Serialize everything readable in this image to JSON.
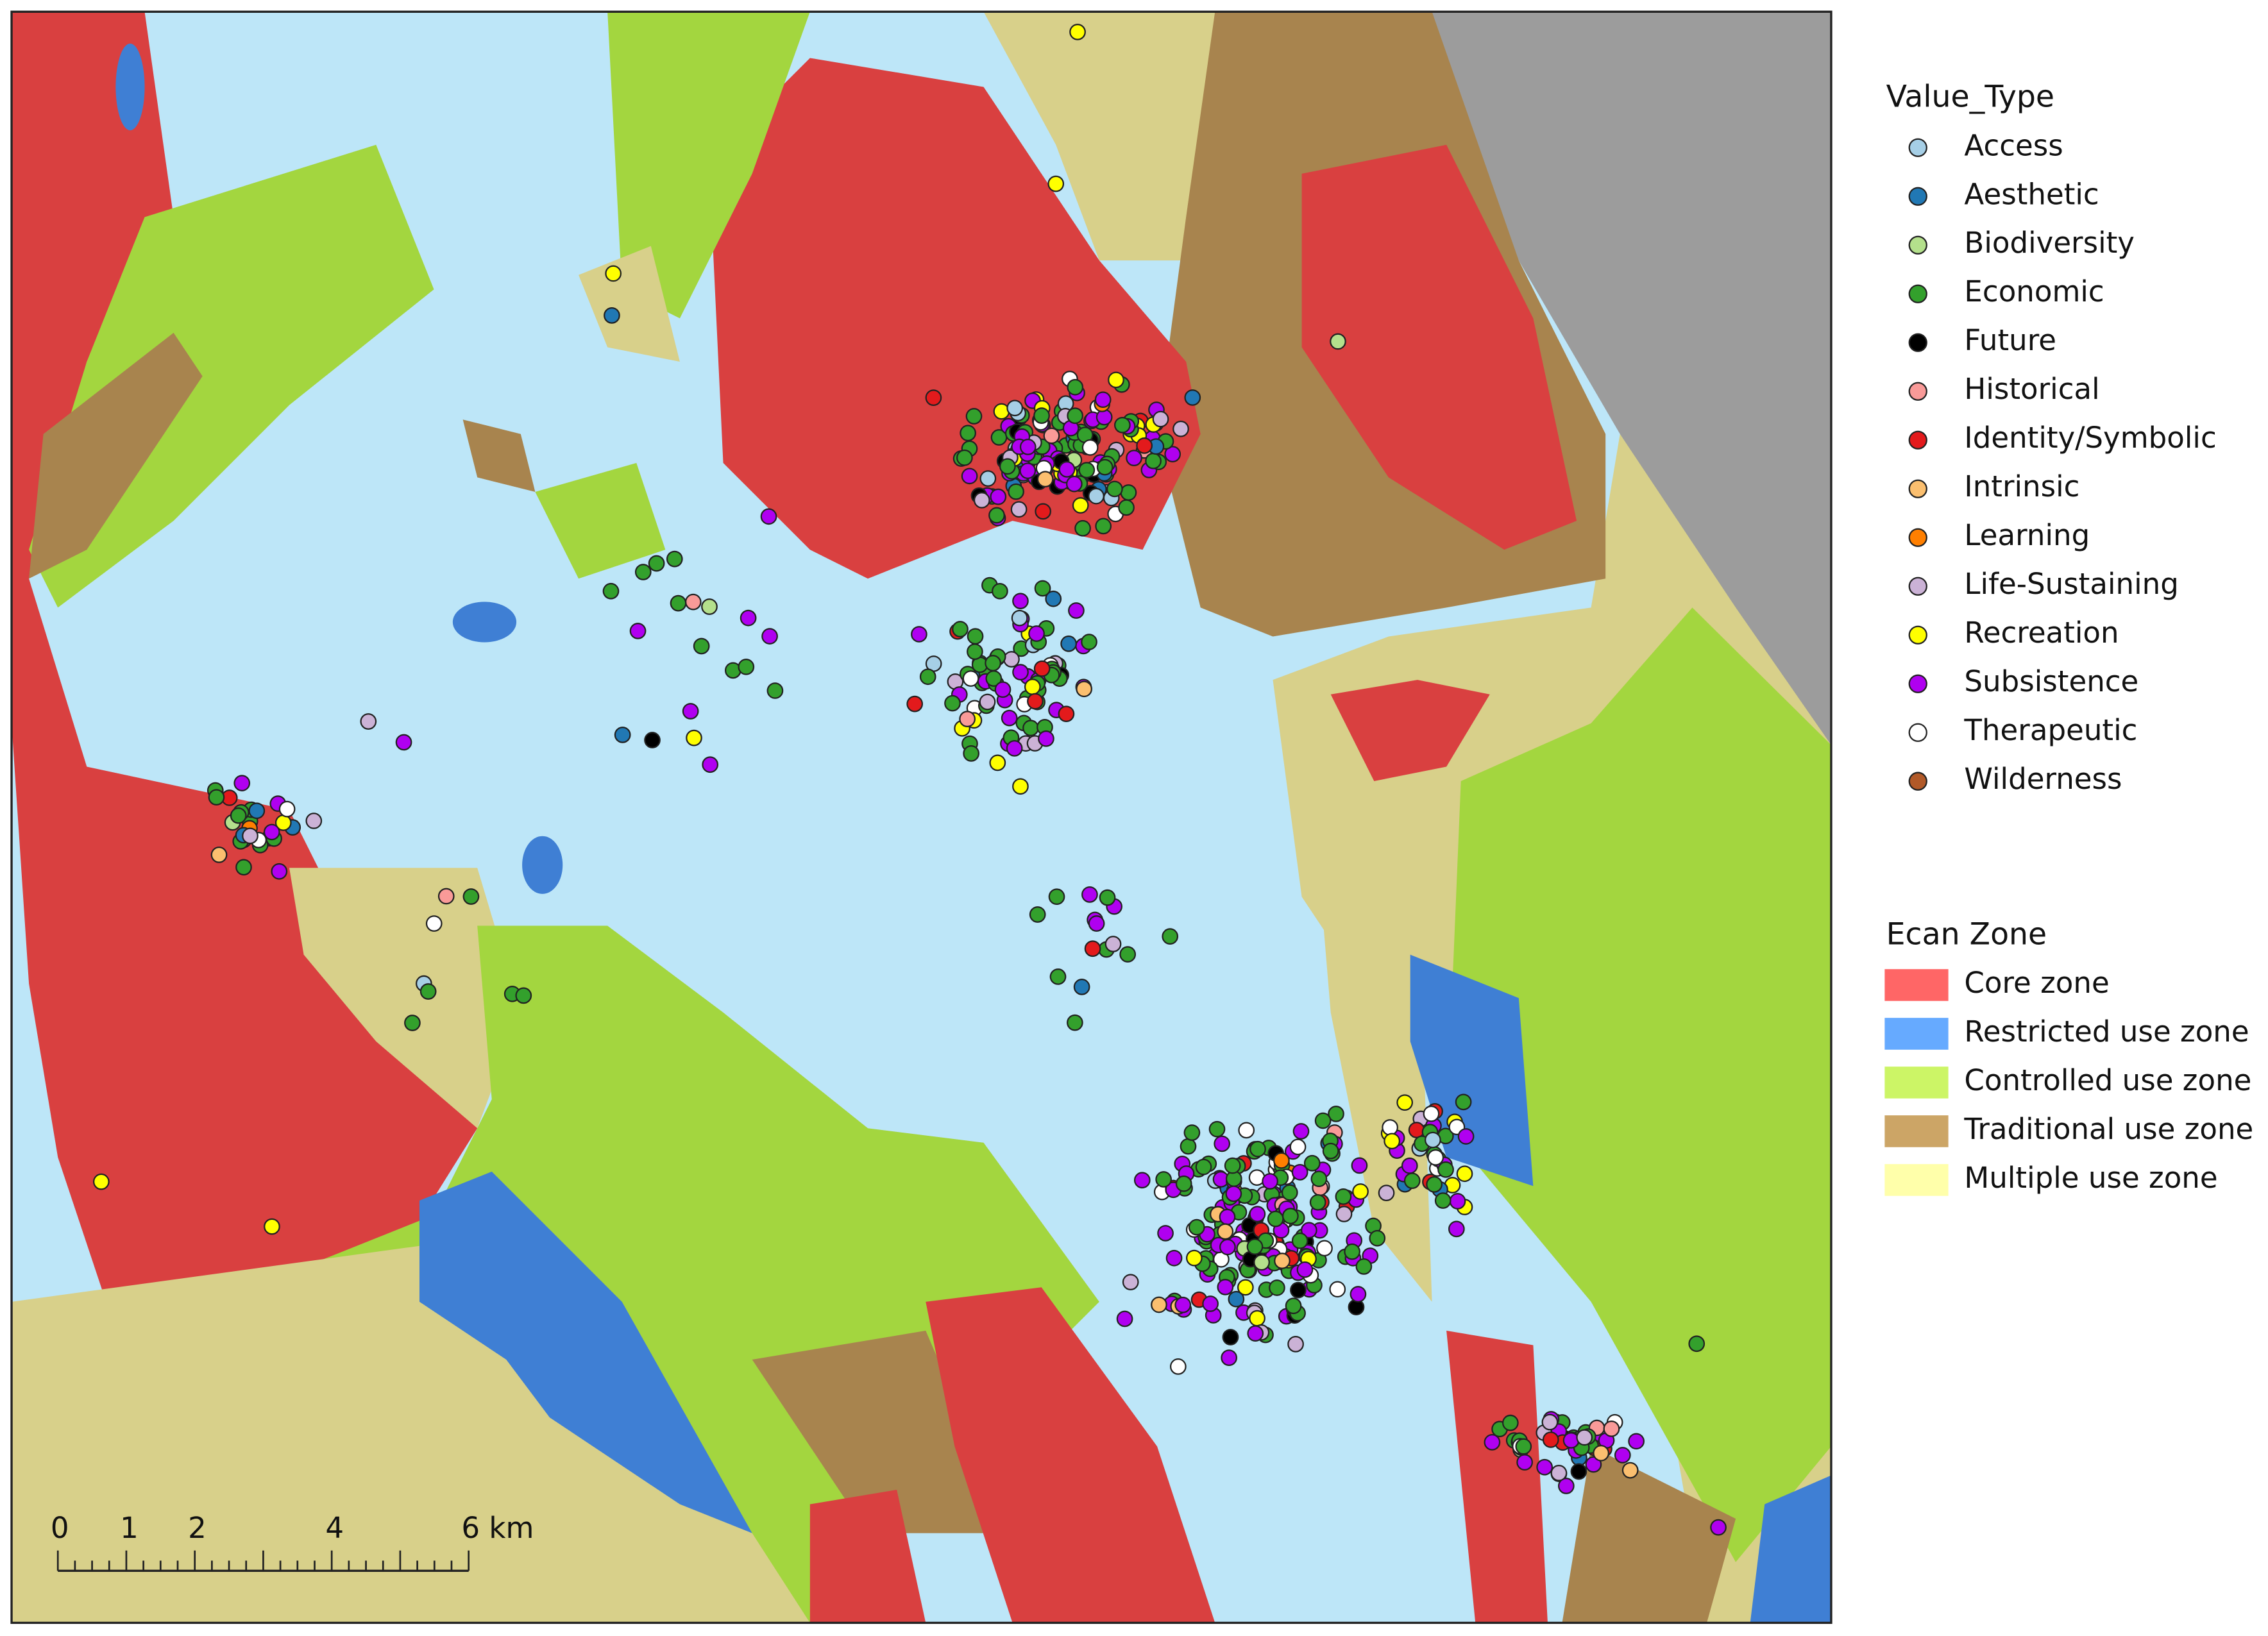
{
  "legend_value_type": {
    "title": "Value_Type",
    "items": [
      {
        "label": "Access",
        "color": "#a6cfe6"
      },
      {
        "label": "Aesthetic",
        "color": "#2178b4"
      },
      {
        "label": "Biodiversity",
        "color": "#b4e08c"
      },
      {
        "label": "Economic",
        "color": "#33a02c"
      },
      {
        "label": "Future",
        "color": "#000000"
      },
      {
        "label": "Historical",
        "color": "#f99a98"
      },
      {
        "label": "Identity/Symbolic",
        "color": "#e31a1c"
      },
      {
        "label": "Intrinsic",
        "color": "#fbbf6f"
      },
      {
        "label": "Learning",
        "color": "#ff7f00"
      },
      {
        "label": "Life-Sustaining",
        "color": "#cbb2d6"
      },
      {
        "label": "Recreation",
        "color": "#ffff00"
      },
      {
        "label": "Subsistence",
        "color": "#b000f0"
      },
      {
        "label": "Therapeutic",
        "color": "#ffffff"
      },
      {
        "label": "Wilderness",
        "color": "#b15928"
      }
    ]
  },
  "legend_zone": {
    "title": "Ecan Zone",
    "items": [
      {
        "label": "Core zone",
        "color": "#ff6666"
      },
      {
        "label": "Restricted use zone",
        "color": "#66aaff"
      },
      {
        "label": "Controlled use zone",
        "color": "#ccf566"
      },
      {
        "label": "Traditional use zone",
        "color": "#cca566"
      },
      {
        "label": "Multiple use zone",
        "color": "#ffffaa"
      }
    ]
  },
  "scale_bar": {
    "labels": [
      "0",
      "1",
      "2",
      "4",
      "6 km"
    ]
  }
}
